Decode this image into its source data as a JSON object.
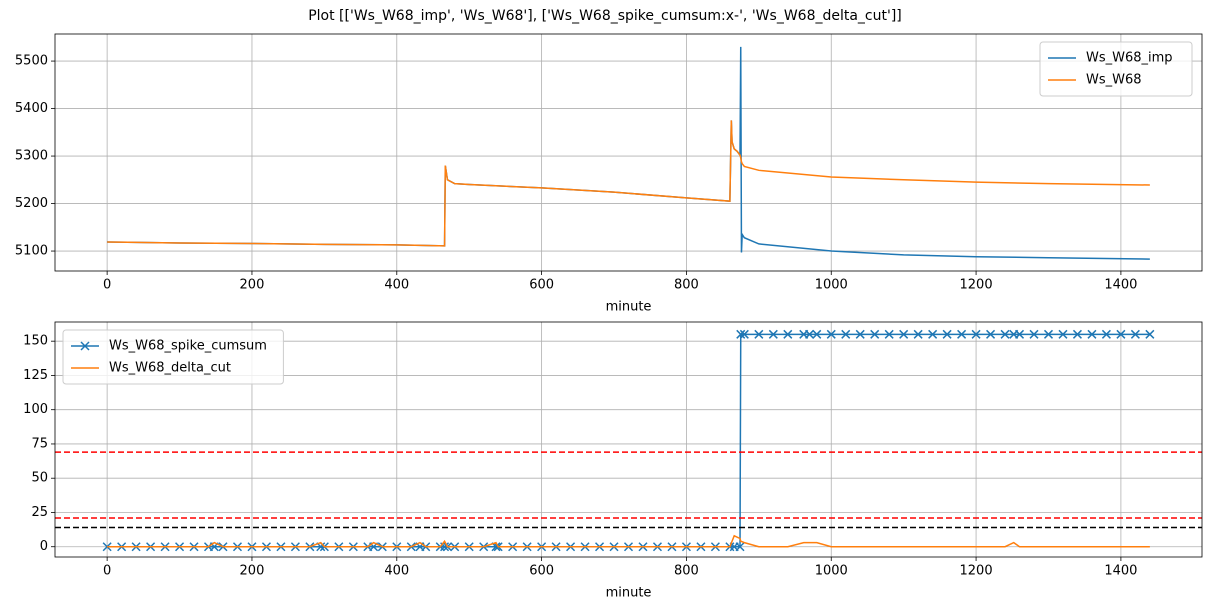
{
  "title": "Plot [['Ws_W68_imp', 'Ws_W68'], ['Ws_W68_spike_cumsum:x-', 'Ws_W68_delta_cut']]",
  "chart_data": [
    {
      "type": "line",
      "xlabel": "minute",
      "grid": true,
      "legend": "upper right",
      "x": [
        0,
        100,
        200,
        300,
        400,
        466,
        467,
        470,
        480,
        500,
        600,
        700,
        800,
        860,
        862,
        863,
        866,
        870,
        874,
        875,
        876,
        877,
        880,
        900,
        1000,
        1100,
        1200,
        1300,
        1440
      ],
      "series": [
        {
          "name": "Ws_W68_imp",
          "color": "#1f77b4",
          "values": [
            5119,
            5117,
            5116,
            5114,
            5113,
            5111,
            5280,
            5250,
            5242,
            5240,
            5233,
            5224,
            5212,
            5205,
            5375,
            5330,
            5315,
            5310,
            5302,
            5530,
            5097,
            5135,
            5128,
            5115,
            5100,
            5092,
            5088,
            5086,
            5083
          ]
        },
        {
          "name": "Ws_W68",
          "color": "#ff7f0e",
          "values": [
            5119,
            5117,
            5116,
            5114,
            5113,
            5111,
            5280,
            5250,
            5242,
            5240,
            5233,
            5224,
            5212,
            5205,
            5375,
            5330,
            5315,
            5310,
            5302,
            5296,
            5288,
            5284,
            5278,
            5270,
            5256,
            5250,
            5245,
            5242,
            5239
          ]
        }
      ],
      "xlim": [
        -72,
        1512
      ],
      "xticks": [
        0,
        200,
        400,
        600,
        800,
        1000,
        1200,
        1400
      ],
      "ylim": [
        5058,
        5557
      ],
      "yticks": [
        5100,
        5200,
        5300,
        5400,
        5500
      ]
    },
    {
      "type": "line",
      "xlabel": "minute",
      "grid": true,
      "legend": "upper left",
      "x": [
        0,
        20,
        40,
        60,
        80,
        100,
        120,
        140,
        148,
        160,
        180,
        200,
        220,
        240,
        260,
        280,
        295,
        300,
        320,
        340,
        360,
        368,
        380,
        400,
        420,
        432,
        440,
        460,
        466,
        470,
        480,
        500,
        520,
        537,
        540,
        560,
        580,
        600,
        620,
        640,
        660,
        680,
        700,
        720,
        740,
        760,
        780,
        800,
        820,
        840,
        860,
        866,
        874,
        875,
        880,
        900,
        920,
        940,
        962,
        970,
        980,
        1000,
        1020,
        1040,
        1060,
        1080,
        1100,
        1120,
        1140,
        1160,
        1180,
        1200,
        1220,
        1240,
        1252,
        1260,
        1280,
        1300,
        1320,
        1340,
        1360,
        1380,
        1400,
        1420,
        1440
      ],
      "series": [
        {
          "name": "Ws_W68_spike_cumsum",
          "color": "#1f77b4",
          "marker": "x",
          "values": [
            0,
            0,
            0,
            0,
            0,
            0,
            0,
            0,
            0,
            0,
            0,
            0,
            0,
            0,
            0,
            0,
            0,
            0,
            0,
            0,
            0,
            0,
            0,
            0,
            0,
            0,
            0,
            0,
            0,
            0,
            0,
            0,
            0,
            0,
            0,
            0,
            0,
            0,
            0,
            0,
            0,
            0,
            0,
            0,
            0,
            0,
            0,
            0,
            0,
            0,
            0,
            0,
            0,
            155,
            155,
            155,
            155,
            155,
            155,
            155,
            155,
            155,
            155,
            155,
            155,
            155,
            155,
            155,
            155,
            155,
            155,
            155,
            155,
            155,
            155,
            155,
            155,
            155,
            155,
            155,
            155,
            155,
            155,
            155,
            155
          ]
        },
        {
          "name": "Ws_W68_delta_cut",
          "color": "#ff7f0e",
          "values": [
            0,
            0,
            0,
            0,
            0,
            0,
            0,
            0,
            3,
            0,
            0,
            0,
            0,
            0,
            0,
            0,
            3,
            0,
            0,
            0,
            0,
            3,
            0,
            0,
            0,
            3,
            0,
            0,
            4,
            0,
            0,
            0,
            0,
            3,
            0,
            0,
            0,
            0,
            0,
            0,
            0,
            0,
            0,
            0,
            0,
            0,
            0,
            0,
            0,
            0,
            0,
            8,
            6,
            4,
            3,
            0,
            0,
            0,
            3,
            3,
            3,
            0,
            0,
            0,
            0,
            0,
            0,
            0,
            0,
            0,
            0,
            0,
            0,
            0,
            3,
            0,
            0,
            0,
            0,
            0,
            0,
            0,
            0,
            0,
            0
          ]
        }
      ],
      "hlines": [
        {
          "value": 69,
          "color": "#ff0000"
        },
        {
          "value": 21,
          "color": "#ff0000"
        },
        {
          "value": 14,
          "color": "#000000"
        }
      ],
      "xlim": [
        -72,
        1512
      ],
      "xticks": [
        0,
        200,
        400,
        600,
        800,
        1000,
        1200,
        1400
      ],
      "ylim": [
        -7.5,
        164
      ],
      "yticks": [
        0,
        25,
        50,
        75,
        100,
        125,
        150
      ]
    }
  ]
}
